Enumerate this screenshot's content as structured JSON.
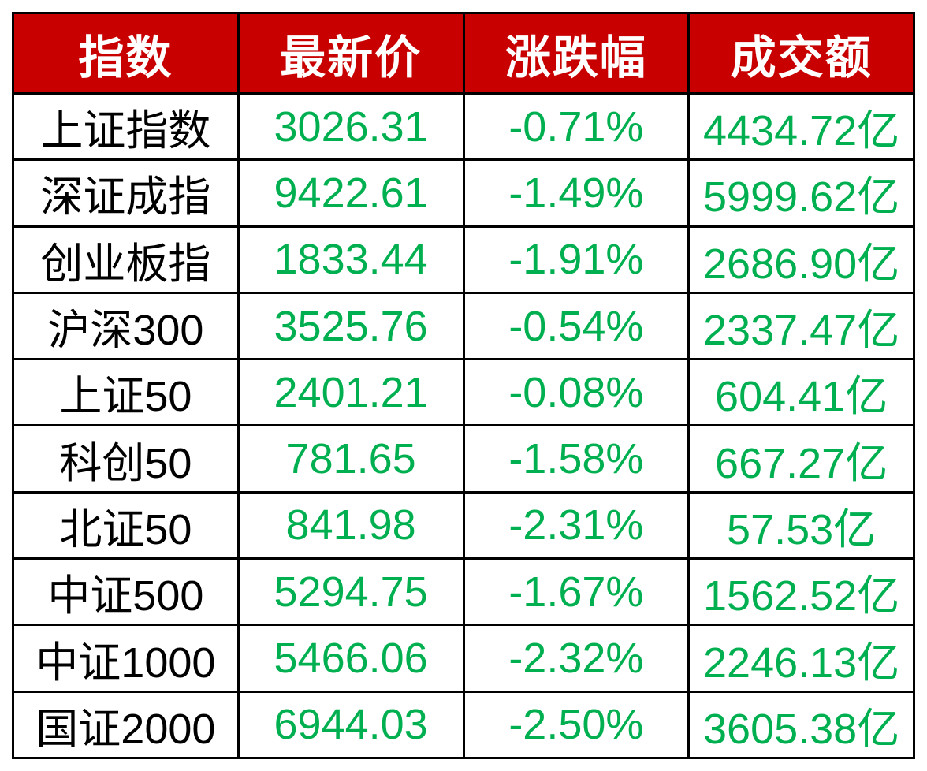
{
  "chart_data": {
    "type": "table",
    "columns": [
      "指数",
      "最新价",
      "涨跌幅",
      "成交额"
    ],
    "rows": [
      [
        "上证指数",
        "3026.31",
        "-0.71%",
        "4434.72亿"
      ],
      [
        "深证成指",
        "9422.61",
        "-1.49%",
        "5999.62亿"
      ],
      [
        "创业板指",
        "1833.44",
        "-1.91%",
        "2686.90亿"
      ],
      [
        "沪深300",
        "3525.76",
        "-0.54%",
        "2337.47亿"
      ],
      [
        "上证50",
        "2401.21",
        "-0.08%",
        "604.41亿"
      ],
      [
        "科创50",
        "781.65",
        "-1.58%",
        "667.27亿"
      ],
      [
        "北证50",
        "841.98",
        "-2.31%",
        "57.53亿"
      ],
      [
        "中证500",
        "5294.75",
        "-1.67%",
        "1562.52亿"
      ],
      [
        "中证1000",
        "5466.06",
        "-2.32%",
        "2246.13亿"
      ],
      [
        "国证2000",
        "6944.03",
        "-2.50%",
        "3605.38亿"
      ]
    ],
    "colors": {
      "header_bg": "#C80000",
      "header_text": "#FFFFFF",
      "value_green": "#00B050",
      "index_name": "#000000",
      "border": "#000000",
      "page_bg": "#FFFFFF"
    },
    "layout": {
      "legend": "none",
      "grid": "on",
      "header_row": true
    }
  }
}
